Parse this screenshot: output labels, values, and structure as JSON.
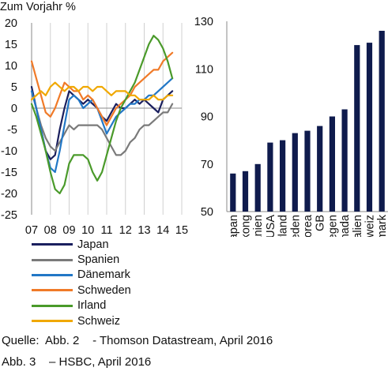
{
  "chart_data": [
    {
      "type": "line",
      "ylabel": "Zum Vorjahr %",
      "ylim": [
        -25,
        20
      ],
      "yticks": [
        -25,
        -20,
        -15,
        -10,
        -5,
        0,
        5,
        10,
        15,
        20
      ],
      "xlim": [
        2007,
        2015
      ],
      "xticks": [
        2007,
        2008,
        2009,
        2010,
        2011,
        2012,
        2013,
        2014,
        2015
      ],
      "xtick_labels": [
        "07",
        "08",
        "09",
        "10",
        "11",
        "12",
        "13",
        "14",
        "15"
      ],
      "grid": "vertical",
      "legend_position": "bottom",
      "series": [
        {
          "name": "Japan",
          "color": "#1a1f5e",
          "x": [
            2007.0,
            2007.25,
            2007.5,
            2007.75,
            2008.0,
            2008.25,
            2008.5,
            2008.75,
            2009.0,
            2009.25,
            2009.5,
            2009.75,
            2010.0,
            2010.25,
            2010.5,
            2010.75,
            2011.0,
            2011.25,
            2011.5,
            2011.75,
            2012.0,
            2012.25,
            2012.5,
            2012.75,
            2013.0,
            2013.25,
            2013.5,
            2013.75,
            2014.0,
            2014.25,
            2014.5
          ],
          "y": [
            5,
            0,
            -5,
            -10,
            -12,
            -11,
            -5,
            0,
            4,
            3,
            2,
            1,
            2,
            1,
            0,
            -2,
            -3,
            -1,
            1,
            0,
            0,
            1,
            2,
            1,
            2,
            1,
            0,
            -1,
            2,
            3,
            4
          ]
        },
        {
          "name": "Spanien",
          "color": "#7a7a7a",
          "x": [
            2007.0,
            2007.25,
            2007.5,
            2007.75,
            2008.0,
            2008.25,
            2008.5,
            2008.75,
            2009.0,
            2009.25,
            2009.5,
            2009.75,
            2010.0,
            2010.25,
            2010.5,
            2010.75,
            2011.0,
            2011.25,
            2011.5,
            2011.75,
            2012.0,
            2012.25,
            2012.5,
            2012.75,
            2013.0,
            2013.25,
            2013.5,
            2013.75,
            2014.0,
            2014.25,
            2014.5
          ],
          "y": [
            4,
            0,
            -4,
            -7,
            -9,
            -10,
            -8,
            -6,
            -4,
            -5,
            -4,
            -4,
            -4,
            -4,
            -4,
            -5,
            -7,
            -9,
            -11,
            -11,
            -10,
            -8,
            -7,
            -5,
            -4,
            -4,
            -3,
            -2,
            -1,
            -1,
            1
          ]
        },
        {
          "name": "Dänemark",
          "color": "#2277c6",
          "x": [
            2007.0,
            2007.25,
            2007.5,
            2007.75,
            2008.0,
            2008.25,
            2008.5,
            2008.75,
            2009.0,
            2009.25,
            2009.5,
            2009.75,
            2010.0,
            2010.25,
            2010.5,
            2010.75,
            2011.0,
            2011.25,
            2011.5,
            2011.75,
            2012.0,
            2012.25,
            2012.5,
            2012.75,
            2013.0,
            2013.25,
            2013.5,
            2013.75,
            2014.0,
            2014.25,
            2014.5
          ],
          "y": [
            4,
            0,
            -5,
            -10,
            -14,
            -15,
            -10,
            -4,
            2,
            3,
            2,
            0,
            1,
            2,
            0,
            -3,
            -6,
            -4,
            -2,
            -1,
            0,
            1,
            1,
            2,
            2,
            3,
            3,
            4,
            5,
            6,
            7
          ]
        },
        {
          "name": "Schweden",
          "color": "#f07a28",
          "x": [
            2007.0,
            2007.25,
            2007.5,
            2007.75,
            2008.0,
            2008.25,
            2008.5,
            2008.75,
            2009.0,
            2009.25,
            2009.5,
            2009.75,
            2010.0,
            2010.25,
            2010.5,
            2010.75,
            2011.0,
            2011.25,
            2011.5,
            2011.75,
            2012.0,
            2012.25,
            2012.5,
            2012.75,
            2013.0,
            2013.25,
            2013.5,
            2013.75,
            2014.0,
            2014.25,
            2014.5
          ],
          "y": [
            11,
            7,
            3,
            -1,
            -2,
            0,
            3,
            6,
            5,
            4,
            4,
            2,
            3,
            2,
            0,
            -2,
            -4,
            -2,
            0,
            1,
            2,
            3,
            5,
            6,
            7,
            8,
            9,
            9,
            11,
            12,
            13
          ]
        },
        {
          "name": "Irland",
          "color": "#4a9a2a",
          "x": [
            2007.0,
            2007.25,
            2007.5,
            2007.75,
            2008.0,
            2008.25,
            2008.5,
            2008.75,
            2009.0,
            2009.25,
            2009.5,
            2009.75,
            2010.0,
            2010.25,
            2010.5,
            2010.75,
            2011.0,
            2011.25,
            2011.5,
            2011.75,
            2012.0,
            2012.25,
            2012.5,
            2012.75,
            2013.0,
            2013.25,
            2013.5,
            2013.75,
            2014.0,
            2014.25,
            2014.5
          ],
          "y": [
            1,
            -2,
            -6,
            -10,
            -15,
            -19,
            -20,
            -18,
            -13,
            -11,
            -11,
            -11,
            -12,
            -15,
            -17,
            -15,
            -11,
            -7,
            -3,
            0,
            2,
            4,
            6,
            9,
            12,
            15,
            17,
            16,
            14,
            11,
            7
          ]
        },
        {
          "name": "Schweiz",
          "color": "#f0a800",
          "x": [
            2007.0,
            2007.25,
            2007.5,
            2007.75,
            2008.0,
            2008.25,
            2008.5,
            2008.75,
            2009.0,
            2009.25,
            2009.5,
            2009.75,
            2010.0,
            2010.25,
            2010.5,
            2010.75,
            2011.0,
            2011.25,
            2011.5,
            2011.75,
            2012.0,
            2012.25,
            2012.5,
            2012.75,
            2013.0,
            2013.25,
            2013.5,
            2013.75,
            2014.0,
            2014.25,
            2014.5
          ],
          "y": [
            2,
            3,
            4,
            3,
            5,
            6,
            5,
            4,
            5,
            5,
            4,
            5,
            5,
            4,
            5,
            5,
            4,
            3,
            4,
            4,
            4,
            3,
            3,
            2,
            2,
            2,
            3,
            2,
            2,
            3,
            3
          ]
        }
      ]
    },
    {
      "type": "bar",
      "ylim": [
        50,
        130
      ],
      "yticks": [
        50,
        70,
        90,
        110,
        130
      ],
      "color": "#0f1b4d",
      "categories": [
        "Japan",
        "Hongkong",
        "Spanien",
        "USA",
        "Irland",
        "Schweden",
        "Korea",
        "GB",
        "Norwegen",
        "Kanada",
        "Australien",
        "Schweiz",
        "Dänemark"
      ],
      "values": [
        66,
        67,
        70,
        79,
        80,
        83,
        84,
        86,
        90,
        93,
        120,
        121,
        126
      ]
    }
  ],
  "source_lines": [
    "Quelle:  Abb. 2    - Thomson Datastream, April 2016",
    "Abb. 3    – HSBC, April 2016"
  ]
}
